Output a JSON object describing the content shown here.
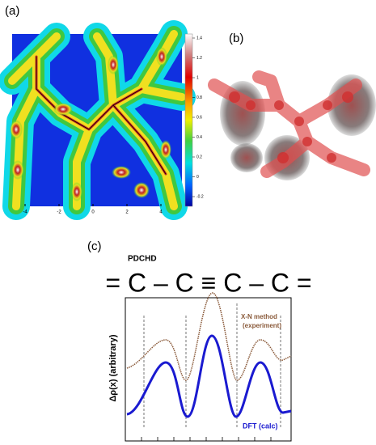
{
  "panels": {
    "a": {
      "label": "(a)",
      "xticks": [
        -4,
        -2,
        0,
        2,
        4
      ],
      "colorbar_ticks": [
        1.4,
        1.2,
        1,
        0.8,
        0.6,
        0.4,
        0.2,
        0,
        -0.2
      ]
    },
    "b": {
      "label": "(b)"
    },
    "c": {
      "label": "(c)",
      "molecule": "PDCHD",
      "formula": "= C – C ≡ C – C =",
      "ylabel": "Δρ(x) (arbitrary)",
      "experiment_label": [
        "X-N method",
        "(experiment)"
      ],
      "calc_label": "DFT (calc)"
    }
  }
}
